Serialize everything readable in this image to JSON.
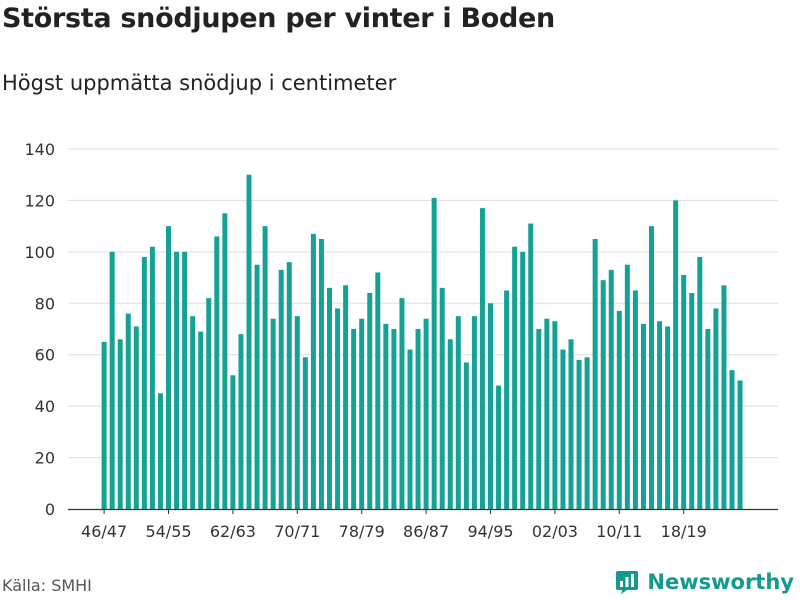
{
  "title": "Största snödjupen per vinter i Boden",
  "subtitle": "Högst uppmätta snödjup i centimeter",
  "source": "Källa: SMHI",
  "brand": "Newsworthy",
  "colors": {
    "bar": "#14a297",
    "grid": "#dddddd",
    "axis": "#333333",
    "brand": "#129a8e"
  },
  "chart_data": {
    "type": "bar",
    "title": "Största snödjupen per vinter i Boden",
    "subtitle": "Högst uppmätta snödjup i centimeter",
    "xlabel": "",
    "ylabel": "",
    "ylim": [
      0,
      140
    ],
    "yticks": [
      0,
      20,
      40,
      60,
      80,
      100,
      120,
      140
    ],
    "xtick_labels": [
      {
        "index": 0,
        "label": "46/47"
      },
      {
        "index": 8,
        "label": "54/55"
      },
      {
        "index": 16,
        "label": "62/63"
      },
      {
        "index": 24,
        "label": "70/71"
      },
      {
        "index": 32,
        "label": "78/79"
      },
      {
        "index": 40,
        "label": "86/87"
      },
      {
        "index": 48,
        "label": "94/95"
      },
      {
        "index": 56,
        "label": "02/03"
      },
      {
        "index": 64,
        "label": "10/11"
      },
      {
        "index": 72,
        "label": "18/19"
      }
    ],
    "grid": true,
    "values": [
      65,
      100,
      66,
      76,
      71,
      98,
      102,
      45,
      110,
      100,
      100,
      75,
      69,
      82,
      106,
      115,
      52,
      68,
      130,
      95,
      110,
      74,
      93,
      96,
      75,
      59,
      107,
      105,
      86,
      78,
      87,
      70,
      74,
      84,
      92,
      72,
      70,
      82,
      62,
      70,
      74,
      121,
      86,
      66,
      75,
      57,
      75,
      117,
      80,
      48,
      85,
      102,
      100,
      111,
      70,
      74,
      73,
      62,
      66,
      58,
      59,
      105,
      89,
      93,
      77,
      95,
      85,
      72,
      110,
      73,
      71,
      120,
      91,
      84,
      98,
      70,
      78,
      87,
      54,
      50
    ]
  }
}
